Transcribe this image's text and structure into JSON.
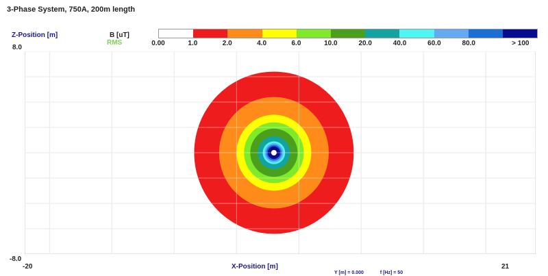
{
  "title": "3-Phase System, 750A, 200m length",
  "axis": {
    "z_label": "Z-Position [m]",
    "z_max": "8.0",
    "z_min": "-8.0",
    "x_label": "X-Position [m]",
    "x_min": "-20",
    "x_max": "21"
  },
  "legend": {
    "quantity": "B [uT]",
    "mode": "RMS",
    "ticks": [
      "0.00",
      "1.0",
      "2.0",
      "4.0",
      "6.0",
      "10.0",
      "20.0",
      "40.0",
      "60.0",
      "80.0",
      "> 100"
    ],
    "colors": [
      "#ffffff",
      "#ee1c1c",
      "#ff8c1a",
      "#ffff00",
      "#7fea2a",
      "#4aa01a",
      "#13a3a3",
      "#4ef5f5",
      "#63aaf5",
      "#1a6fd6",
      "#070b8f"
    ]
  },
  "footer": {
    "y": "Y [m] = 0.000",
    "f": "f [Hz] = 50"
  },
  "chart_data": {
    "type": "heatmap",
    "title": "3-Phase System, 750A, 200m length",
    "xlabel": "X-Position [m]",
    "ylabel": "Z-Position [m]",
    "xlim": [
      -20,
      21
    ],
    "ylim": [
      -8,
      8
    ],
    "grid": true,
    "colorbar_label": "B [uT] RMS",
    "colorbar_levels": [
      0,
      1,
      2,
      4,
      6,
      10,
      20,
      40,
      60,
      80,
      100
    ],
    "source_center": [
      0,
      0
    ],
    "contours": [
      {
        "level": 1.0,
        "radius": 6.4,
        "color": "#ee1c1c"
      },
      {
        "level": 2.0,
        "radius": 4.4,
        "color": "#ff8c1a"
      },
      {
        "level": 4.0,
        "radius": 3.0,
        "color": "#ffff00"
      },
      {
        "level": 6.0,
        "radius": 2.4,
        "color": "#7fea2a"
      },
      {
        "level": 10.0,
        "radius": 1.9,
        "color": "#4aa01a"
      },
      {
        "level": 20.0,
        "radius": 1.3,
        "color": "#13a3a3"
      },
      {
        "level": 40.0,
        "radius": 0.9,
        "color": "#4ef5f5"
      },
      {
        "level": 60.0,
        "radius": 0.75,
        "color": "#63aaf5"
      },
      {
        "level": 80.0,
        "radius": 0.62,
        "color": "#1a6fd6"
      },
      {
        "level": 100.0,
        "radius": 0.5,
        "color": "#070b8f"
      }
    ]
  }
}
